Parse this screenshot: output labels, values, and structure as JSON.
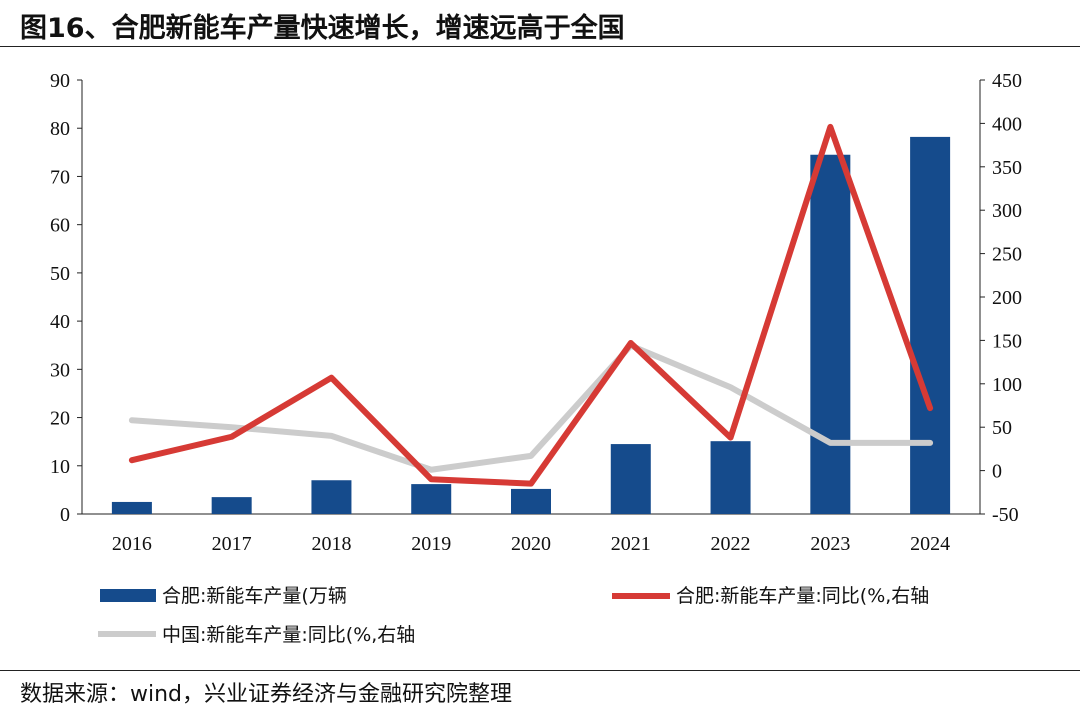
{
  "title": "图16、合肥新能车产量快速增长，增速远高于全国",
  "source": "数据来源：wind，兴业证券经济与金融研究院整理",
  "chart_data": {
    "type": "bar+line",
    "categories": [
      "2016",
      "2017",
      "2018",
      "2019",
      "2020",
      "2021",
      "2022",
      "2023",
      "2024"
    ],
    "left_axis": {
      "ylim": [
        0,
        90
      ],
      "ticks": [
        0,
        10,
        20,
        30,
        40,
        50,
        60,
        70,
        80,
        90
      ]
    },
    "right_axis": {
      "ylim": [
        -50,
        450
      ],
      "ticks": [
        -50,
        0,
        50,
        100,
        150,
        200,
        250,
        300,
        350,
        400,
        450
      ]
    },
    "series": [
      {
        "name": "合肥:新能车产量(万辆",
        "type": "bar",
        "axis": "left",
        "color": "#154b8c",
        "values": [
          2.5,
          3.5,
          7.0,
          6.2,
          5.2,
          14.5,
          15.1,
          74.5,
          78.2
        ]
      },
      {
        "name": "合肥:新能车产量:同比(%,右轴",
        "type": "line",
        "axis": "right",
        "color": "#d63a35",
        "values": [
          12,
          39,
          107,
          -10,
          -15,
          147,
          38,
          396,
          72
        ]
      },
      {
        "name": "中国:新能车产量:同比(%,右轴",
        "type": "line",
        "axis": "right",
        "color": "#cccccc",
        "values": [
          58,
          50,
          40,
          1,
          17,
          144,
          96,
          32,
          32
        ]
      }
    ],
    "grid": false,
    "legend": "bottom"
  }
}
